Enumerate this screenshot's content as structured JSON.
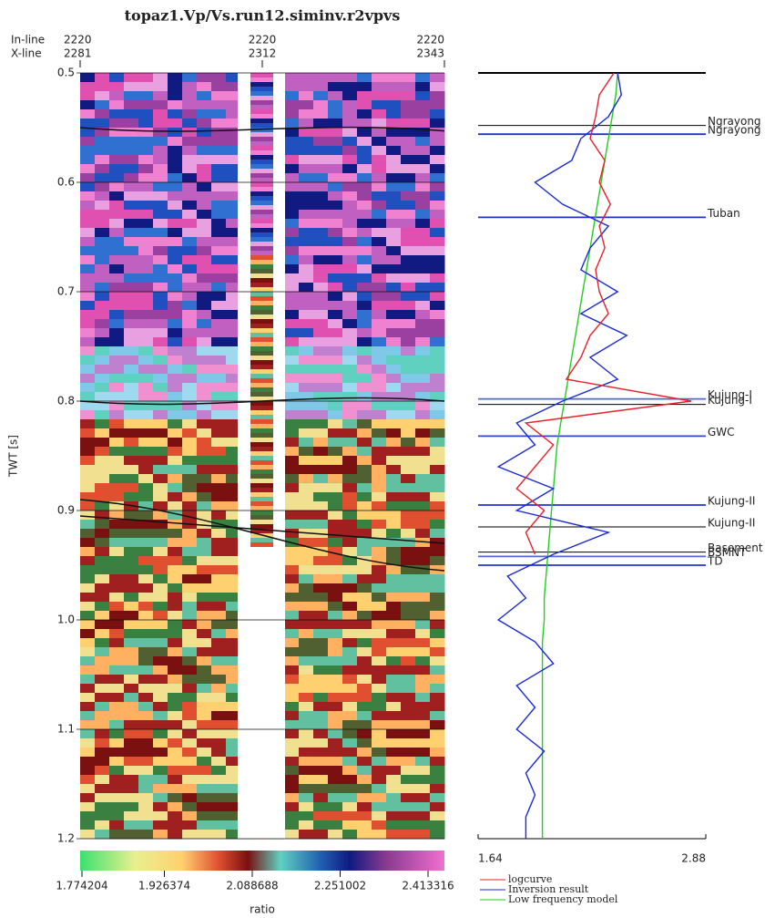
{
  "chart_data": [
    {
      "type": "seismic",
      "title": "topaz1.Vp/Vs.run12.siminv.r2vpvs",
      "inline_label": "In-line",
      "xline_label": "X-line",
      "inlines": [
        2220,
        2220,
        2220
      ],
      "xlines": [
        2281,
        2312,
        2343
      ],
      "xlim": [
        2281,
        2343
      ],
      "ylabel": "TWT [s]",
      "ylim": [
        0.5,
        1.2
      ],
      "yticks": [
        0.5,
        0.6,
        0.7,
        0.8,
        0.9,
        {
          "value": 1,
          "label": "1.0"
        },
        1.1,
        1.2
      ],
      "colorbar_ticks": [
        1.774204,
        1.926374,
        2.088688,
        2.251002,
        2.413316
      ],
      "colorbar_label": "ratio"
    },
    {
      "type": "line",
      "ylim": [
        0.5,
        1.2
      ],
      "xlim": [
        1.64,
        2.88
      ],
      "xticks": [
        1.64,
        2.88
      ],
      "x": [
        0.5,
        0.52,
        0.54,
        0.56,
        0.58,
        0.6,
        0.62,
        0.64,
        0.66,
        0.68,
        0.7,
        0.72,
        0.74,
        0.76,
        0.78,
        0.8,
        0.82,
        0.84,
        0.86,
        0.88,
        0.9,
        0.92,
        0.94,
        0.96,
        0.98,
        1,
        1.02,
        1.04,
        1.06,
        1.08,
        1.1,
        1.12,
        1.14,
        1.16,
        1.18,
        1.2
      ],
      "series": [
        {
          "name": "logcurve",
          "color": "#e8202a",
          "values": [
            2.38,
            2.3,
            2.28,
            2.25,
            2.33,
            2.3,
            2.36,
            2.3,
            2.33,
            2.28,
            2.3,
            2.35,
            2.25,
            2.2,
            2.12,
            2.8,
            1.9,
            2.05,
            1.95,
            1.85,
            2.0,
            1.9,
            1.95,
            null,
            null,
            null,
            null,
            null,
            null,
            null,
            null,
            null,
            null,
            null,
            null,
            null
          ]
        },
        {
          "name": "Inversion result",
          "color": "#1a2bd0",
          "values": [
            2.4,
            2.42,
            2.35,
            2.2,
            2.15,
            1.95,
            2.1,
            2.35,
            2.25,
            2.2,
            2.4,
            2.2,
            2.45,
            2.25,
            2.4,
            2.1,
            1.85,
            1.95,
            1.75,
            2.05,
            1.85,
            2.35,
            2.05,
            1.8,
            1.9,
            1.75,
            1.95,
            2.05,
            1.85,
            1.95,
            1.85,
            2.0,
            1.9,
            1.95,
            1.9,
            1.9
          ]
        },
        {
          "name": "Low frequency model",
          "color": "#22cc22",
          "values": [
            2.4,
            2.39,
            2.37,
            2.35,
            2.33,
            2.31,
            2.29,
            2.27,
            2.25,
            2.23,
            2.21,
            2.19,
            2.17,
            2.15,
            2.13,
            2.11,
            2.09,
            2.07,
            2.06,
            2.05,
            2.04,
            2.03,
            2.02,
            2.01,
            2.0,
            2.0,
            1.99,
            1.99,
            1.99,
            1.99,
            1.99,
            1.99,
            1.99,
            1.99,
            1.99,
            1.99
          ]
        }
      ],
      "markers": [
        {
          "label": "Ngrayong",
          "value": 0.548,
          "color": "#000000"
        },
        {
          "label": "Ngrayong",
          "value": 0.556,
          "color": "#2233cc"
        },
        {
          "label": "Tuban",
          "value": 0.632,
          "color": "#2233cc"
        },
        {
          "label": "Kujung-I",
          "value": 0.798,
          "color": "#5566dd"
        },
        {
          "label": "Kujung-I",
          "value": 0.803,
          "color": "#000000"
        },
        {
          "label": "GWC",
          "value": 0.832,
          "color": "#3344dd"
        },
        {
          "label": "Kujung-II",
          "value": 0.895,
          "color": "#2233cc"
        },
        {
          "label": "Kujung-II",
          "value": 0.915,
          "color": "#000000"
        },
        {
          "label": "Basement",
          "value": 0.938,
          "color": "#000000"
        },
        {
          "label": "BSMNT",
          "value": 0.942,
          "color": "#5566dd"
        },
        {
          "label": "TD",
          "value": 0.95,
          "color": "#2233cc"
        }
      ]
    }
  ]
}
